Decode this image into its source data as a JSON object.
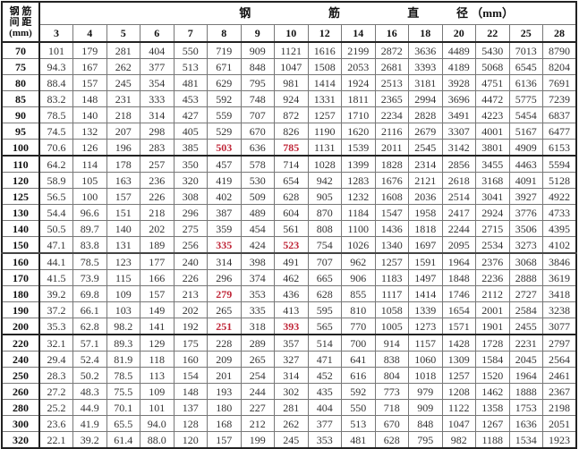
{
  "corner": {
    "line1": "钢 筋",
    "line2": "间 距",
    "line3": "(mm)"
  },
  "title_words": [
    "钢",
    "筋",
    "直",
    "径 （mm）"
  ],
  "diameters": [
    "3",
    "4",
    "5",
    "6",
    "7",
    "8",
    "9",
    "10",
    "12",
    "14",
    "16",
    "18",
    "20",
    "22",
    "25",
    "28"
  ],
  "highlight_color": "#c0283a",
  "rows": [
    {
      "spacing": "70",
      "values": [
        "101",
        "179",
        "281",
        "404",
        "550",
        "719",
        "909",
        "1121",
        "1616",
        "2199",
        "2872",
        "3636",
        "4489",
        "5430",
        "7013",
        "8790"
      ],
      "red": []
    },
    {
      "spacing": "75",
      "values": [
        "94.3",
        "167",
        "262",
        "377",
        "513",
        "671",
        "848",
        "1047",
        "1508",
        "2053",
        "2681",
        "3393",
        "4189",
        "5068",
        "6545",
        "8204"
      ],
      "red": []
    },
    {
      "spacing": "80",
      "values": [
        "88.4",
        "157",
        "245",
        "354",
        "481",
        "629",
        "795",
        "981",
        "1414",
        "1924",
        "2513",
        "3181",
        "3928",
        "4751",
        "6136",
        "7691"
      ],
      "red": []
    },
    {
      "spacing": "85",
      "values": [
        "83.2",
        "148",
        "231",
        "333",
        "453",
        "592",
        "748",
        "924",
        "1331",
        "1811",
        "2365",
        "2994",
        "3696",
        "4472",
        "5775",
        "7239"
      ],
      "red": []
    },
    {
      "spacing": "90",
      "values": [
        "78.5",
        "140",
        "218",
        "314",
        "427",
        "559",
        "707",
        "872",
        "1257",
        "1710",
        "2234",
        "2828",
        "3491",
        "4223",
        "5454",
        "6837"
      ],
      "red": []
    },
    {
      "spacing": "95",
      "values": [
        "74.5",
        "132",
        "207",
        "298",
        "405",
        "529",
        "670",
        "826",
        "1190",
        "1620",
        "2116",
        "2679",
        "3307",
        "4001",
        "5167",
        "6477"
      ],
      "red": []
    },
    {
      "spacing": "100",
      "values": [
        "70.6",
        "126",
        "196",
        "283",
        "385",
        "503",
        "636",
        "785",
        "1131",
        "1539",
        "2011",
        "2545",
        "3142",
        "3801",
        "4909",
        "6153"
      ],
      "red": [
        5,
        7
      ]
    },
    {
      "spacing": "110",
      "values": [
        "64.2",
        "114",
        "178",
        "257",
        "350",
        "457",
        "578",
        "714",
        "1028",
        "1399",
        "1828",
        "2314",
        "2856",
        "3455",
        "4463",
        "5594"
      ],
      "red": []
    },
    {
      "spacing": "120",
      "values": [
        "58.9",
        "105",
        "163",
        "236",
        "320",
        "419",
        "530",
        "654",
        "942",
        "1283",
        "1676",
        "2121",
        "2618",
        "3168",
        "4091",
        "5128"
      ],
      "red": []
    },
    {
      "spacing": "125",
      "values": [
        "56.5",
        "100",
        "157",
        "226",
        "308",
        "402",
        "509",
        "628",
        "905",
        "1232",
        "1608",
        "2036",
        "2514",
        "3041",
        "3927",
        "4922"
      ],
      "red": []
    },
    {
      "spacing": "130",
      "values": [
        "54.4",
        "96.6",
        "151",
        "218",
        "296",
        "387",
        "489",
        "604",
        "870",
        "1184",
        "1547",
        "1958",
        "2417",
        "2924",
        "3776",
        "4733"
      ],
      "red": []
    },
    {
      "spacing": "140",
      "values": [
        "50.5",
        "89.7",
        "140",
        "202",
        "275",
        "359",
        "454",
        "561",
        "808",
        "1100",
        "1436",
        "1818",
        "2244",
        "2715",
        "3506",
        "4395"
      ],
      "red": []
    },
    {
      "spacing": "150",
      "values": [
        "47.1",
        "83.8",
        "131",
        "189",
        "256",
        "335",
        "424",
        "523",
        "754",
        "1026",
        "1340",
        "1697",
        "2095",
        "2534",
        "3273",
        "4102"
      ],
      "red": [
        5,
        7
      ]
    },
    {
      "spacing": "160",
      "values": [
        "44.1",
        "78.5",
        "123",
        "177",
        "240",
        "314",
        "398",
        "491",
        "707",
        "962",
        "1257",
        "1591",
        "1964",
        "2376",
        "3068",
        "3846"
      ],
      "red": []
    },
    {
      "spacing": "170",
      "values": [
        "41.5",
        "73.9",
        "115",
        "166",
        "226",
        "296",
        "374",
        "462",
        "665",
        "906",
        "1183",
        "1497",
        "1848",
        "2236",
        "2888",
        "3619"
      ],
      "red": []
    },
    {
      "spacing": "180",
      "values": [
        "39.2",
        "69.8",
        "109",
        "157",
        "213",
        "279",
        "353",
        "436",
        "628",
        "855",
        "1117",
        "1414",
        "1746",
        "2112",
        "2727",
        "3418"
      ],
      "red": [
        5
      ]
    },
    {
      "spacing": "190",
      "values": [
        "37.2",
        "66.1",
        "103",
        "149",
        "202",
        "265",
        "335",
        "413",
        "595",
        "810",
        "1058",
        "1339",
        "1654",
        "2001",
        "2584",
        "3238"
      ],
      "red": []
    },
    {
      "spacing": "200",
      "values": [
        "35.3",
        "62.8",
        "98.2",
        "141",
        "192",
        "251",
        "318",
        "393",
        "565",
        "770",
        "1005",
        "1273",
        "1571",
        "1901",
        "2455",
        "3077"
      ],
      "red": [
        5,
        7
      ]
    },
    {
      "spacing": "220",
      "values": [
        "32.1",
        "57.1",
        "89.3",
        "129",
        "175",
        "228",
        "289",
        "357",
        "514",
        "700",
        "914",
        "1157",
        "1428",
        "1728",
        "2231",
        "2797"
      ],
      "red": []
    },
    {
      "spacing": "240",
      "values": [
        "29.4",
        "52.4",
        "81.9",
        "118",
        "160",
        "209",
        "265",
        "327",
        "471",
        "641",
        "838",
        "1060",
        "1309",
        "1584",
        "2045",
        "2564"
      ],
      "red": []
    },
    {
      "spacing": "250",
      "values": [
        "28.3",
        "50.2",
        "78.5",
        "113",
        "154",
        "201",
        "254",
        "314",
        "452",
        "616",
        "804",
        "1018",
        "1257",
        "1520",
        "1964",
        "2461"
      ],
      "red": []
    },
    {
      "spacing": "260",
      "values": [
        "27.2",
        "48.3",
        "75.5",
        "109",
        "148",
        "193",
        "244",
        "302",
        "435",
        "592",
        "773",
        "979",
        "1208",
        "1462",
        "1888",
        "2367"
      ],
      "red": []
    },
    {
      "spacing": "280",
      "values": [
        "25.2",
        "44.9",
        "70.1",
        "101",
        "137",
        "180",
        "227",
        "281",
        "404",
        "550",
        "718",
        "909",
        "1122",
        "1358",
        "1753",
        "2198"
      ],
      "red": []
    },
    {
      "spacing": "300",
      "values": [
        "23.6",
        "41.9",
        "65.5",
        "94.0",
        "128",
        "168",
        "212",
        "262",
        "377",
        "513",
        "670",
        "848",
        "1047",
        "1267",
        "1636",
        "2051"
      ],
      "red": []
    },
    {
      "spacing": "320",
      "values": [
        "22.1",
        "39.2",
        "61.4",
        "88.0",
        "120",
        "157",
        "199",
        "245",
        "353",
        "481",
        "628",
        "795",
        "982",
        "1188",
        "1534",
        "1923"
      ],
      "red": []
    }
  ]
}
